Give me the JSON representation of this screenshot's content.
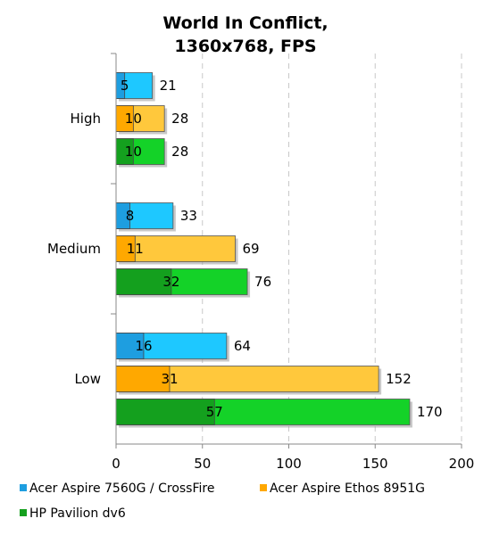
{
  "chart_data": {
    "type": "bar",
    "orientation": "horizontal",
    "title": [
      "World In Conflict,",
      "1360x768, FPS"
    ],
    "categories": [
      "High",
      "Medium",
      "Low"
    ],
    "xlim": [
      0,
      200
    ],
    "xticks": [
      0,
      50,
      100,
      150,
      200
    ],
    "grid": true,
    "legend_position": "bottom",
    "series": [
      {
        "name": "Acer Aspire 7560G / CrossFire",
        "color": "#1EC8FF",
        "dark": "#1E9EE0",
        "min": [
          5,
          8,
          16
        ],
        "avg": [
          21,
          33,
          64
        ]
      },
      {
        "name": "Acer Aspire Ethos 8951G",
        "color": "#FFC83C",
        "dark": "#FFA800",
        "min": [
          10,
          11,
          31
        ],
        "avg": [
          28,
          69,
          152
        ]
      },
      {
        "name": "HP Pavilion dv6",
        "color": "#14D228",
        "dark": "#14A01E",
        "min": [
          10,
          32,
          57
        ],
        "avg": [
          28,
          76,
          170
        ]
      }
    ]
  }
}
